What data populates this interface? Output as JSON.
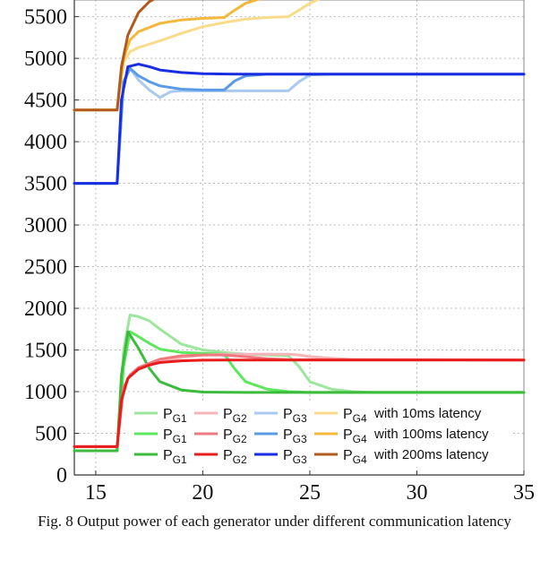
{
  "caption": "Fig. 8  Output power of each generator under different communication latency",
  "chart_data": {
    "type": "line",
    "title": "",
    "xlabel": "",
    "ylabel": "",
    "xlim": [
      14,
      35
    ],
    "ylim": [
      0,
      5700
    ],
    "grid": true,
    "legend_placement": "bottom-center",
    "xticks": [
      15,
      20,
      25,
      30,
      35
    ],
    "yticks": [
      0,
      500,
      1000,
      1500,
      2000,
      2500,
      3000,
      3500,
      4000,
      4500,
      5000,
      5500
    ],
    "legend": {
      "symbol": "P",
      "rows": [
        {
          "latency_label": "with 10ms latency",
          "subs": [
            "G1",
            "G2",
            "G3",
            "G4"
          ]
        },
        {
          "latency_label": "with 100ms latency",
          "subs": [
            "G1",
            "G2",
            "G3",
            "G4"
          ]
        },
        {
          "latency_label": "with 200ms latency",
          "subs": [
            "G1",
            "G2",
            "G3",
            "G4"
          ]
        }
      ]
    },
    "series": [
      {
        "gen": "G4",
        "latency": "10ms",
        "color": "#f8dc8c",
        "x": [
          14,
          16,
          16.3,
          16.6,
          17,
          18,
          19,
          20,
          21,
          22,
          23,
          24,
          24.5,
          25,
          25.5,
          26,
          27,
          28,
          35
        ],
        "y": [
          4380,
          4380,
          4950,
          5080,
          5130,
          5210,
          5300,
          5380,
          5430,
          5470,
          5490,
          5500,
          5580,
          5660,
          5720,
          5760,
          5800,
          5810,
          5810
        ]
      },
      {
        "gen": "G4",
        "latency": "100ms",
        "color": "#f4b83c",
        "x": [
          14,
          16,
          16.3,
          16.6,
          17,
          18,
          19,
          20,
          21,
          21.5,
          22,
          23,
          24,
          25,
          35
        ],
        "y": [
          4380,
          4380,
          5000,
          5220,
          5320,
          5420,
          5460,
          5480,
          5490,
          5580,
          5660,
          5740,
          5790,
          5805,
          5810
        ]
      },
      {
        "gen": "G4",
        "latency": "200ms",
        "color": "#b15a1e",
        "x": [
          14,
          16,
          16.2,
          16.5,
          17,
          17.5,
          18,
          19,
          20,
          22,
          25,
          35
        ],
        "y": [
          4380,
          4380,
          4900,
          5280,
          5550,
          5680,
          5750,
          5790,
          5800,
          5810,
          5810,
          5810
        ]
      },
      {
        "gen": "G3",
        "latency": "10ms",
        "color": "#a9c9ee",
        "x": [
          14,
          16,
          16.3,
          16.6,
          17,
          17.5,
          18,
          18.5,
          19,
          20,
          21,
          22,
          23,
          24,
          24.5,
          25,
          26,
          35
        ],
        "y": [
          3500,
          3500,
          4700,
          4880,
          4740,
          4620,
          4530,
          4600,
          4610,
          4610,
          4610,
          4610,
          4610,
          4610,
          4720,
          4800,
          4810,
          4810
        ]
      },
      {
        "gen": "G3",
        "latency": "100ms",
        "color": "#5b9ae6",
        "x": [
          14,
          16,
          16.3,
          16.6,
          17,
          17.5,
          18,
          19,
          20,
          21,
          21.5,
          22,
          23,
          35
        ],
        "y": [
          3500,
          3500,
          4720,
          4880,
          4790,
          4720,
          4670,
          4630,
          4620,
          4620,
          4730,
          4790,
          4810,
          4810
        ]
      },
      {
        "gen": "G3",
        "latency": "200ms",
        "color": "#1a2ee0",
        "x": [
          14,
          16,
          16.2,
          16.5,
          17,
          17.5,
          18,
          19,
          20,
          22,
          25,
          35
        ],
        "y": [
          3500,
          3500,
          4500,
          4900,
          4930,
          4900,
          4860,
          4830,
          4815,
          4810,
          4810,
          4810
        ]
      },
      {
        "gen": "G1",
        "latency": "10ms",
        "color": "#9de69d",
        "x": [
          14,
          16,
          16.3,
          16.6,
          17,
          17.5,
          18,
          19,
          20,
          21,
          22,
          23,
          24,
          24.5,
          25,
          26,
          27,
          28,
          35
        ],
        "y": [
          290,
          290,
          1500,
          1920,
          1900,
          1850,
          1750,
          1570,
          1500,
          1470,
          1450,
          1440,
          1430,
          1300,
          1120,
          1030,
          1000,
          990,
          990
        ]
      },
      {
        "gen": "G1",
        "latency": "100ms",
        "color": "#5ee85e",
        "x": [
          14,
          16,
          16.3,
          16.6,
          17,
          17.5,
          18,
          19,
          20,
          21,
          21.5,
          22,
          23,
          24,
          25,
          35
        ],
        "y": [
          290,
          290,
          1300,
          1720,
          1660,
          1580,
          1510,
          1470,
          1460,
          1450,
          1270,
          1120,
          1030,
          1000,
          990,
          990
        ]
      },
      {
        "gen": "G1",
        "latency": "200ms",
        "color": "#3cbb3c",
        "x": [
          14,
          16,
          16.2,
          16.5,
          17,
          17.5,
          18,
          19,
          20,
          22,
          25,
          35
        ],
        "y": [
          290,
          290,
          1200,
          1720,
          1520,
          1280,
          1120,
          1020,
          995,
          990,
          990,
          990
        ]
      },
      {
        "gen": "G2",
        "latency": "10ms",
        "color": "#f6b6b9",
        "x": [
          14,
          16,
          16.3,
          16.6,
          17,
          18,
          19,
          20,
          21,
          22,
          23,
          24,
          24.5,
          25,
          26,
          27,
          35
        ],
        "y": [
          340,
          340,
          1050,
          1200,
          1270,
          1360,
          1410,
          1440,
          1450,
          1450,
          1450,
          1450,
          1440,
          1420,
          1400,
          1385,
          1380
        ]
      },
      {
        "gen": "G2",
        "latency": "100ms",
        "color": "#ee7a7f",
        "x": [
          14,
          16,
          16.3,
          16.6,
          17,
          18,
          19,
          20,
          21,
          22,
          23,
          24,
          35
        ],
        "y": [
          340,
          340,
          1050,
          1200,
          1290,
          1390,
          1430,
          1440,
          1440,
          1420,
          1395,
          1385,
          1380
        ]
      },
      {
        "gen": "G2",
        "latency": "200ms",
        "color": "#e81c1c",
        "x": [
          14,
          16,
          16.2,
          16.5,
          17,
          17.5,
          18,
          19,
          20,
          22,
          25,
          35
        ],
        "y": [
          340,
          340,
          900,
          1160,
          1270,
          1320,
          1350,
          1370,
          1378,
          1380,
          1380,
          1380
        ]
      }
    ]
  }
}
